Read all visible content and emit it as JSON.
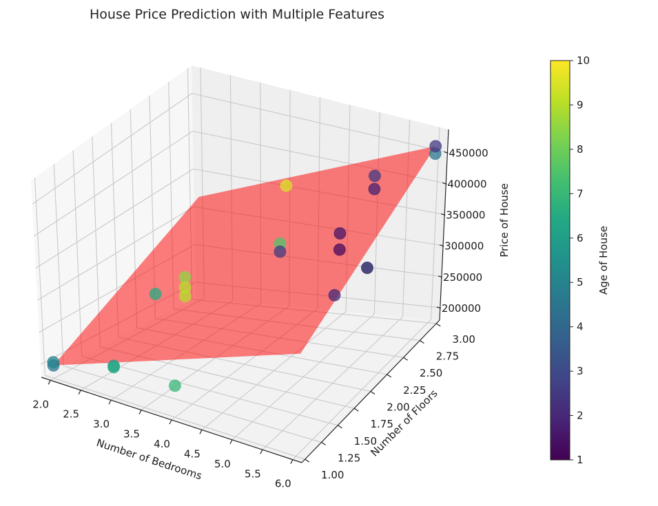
{
  "figure": {
    "title": "House Price Prediction with Multiple Features"
  },
  "chart_data": {
    "type": "scatter3d",
    "title": "House Price Prediction with Multiple Features",
    "xlabel": "Number of Bedrooms",
    "ylabel": "Number of Floors",
    "zlabel": "Price of House",
    "colorbar_label": "Age of House",
    "colormap": "viridis",
    "xlim": [
      1.85,
      6.15
    ],
    "ylim": [
      0.95,
      3.05
    ],
    "zlim": [
      180000,
      487000
    ],
    "clim": [
      1,
      10
    ],
    "x_ticks": [
      "2.0",
      "2.5",
      "3.0",
      "3.5",
      "4.0",
      "4.5",
      "5.0",
      "5.5",
      "6.0"
    ],
    "y_ticks": [
      "1.00",
      "1.25",
      "1.50",
      "1.75",
      "2.00",
      "2.25",
      "2.50",
      "2.75",
      "3.00"
    ],
    "z_ticks": [
      "200000",
      "250000",
      "300000",
      "350000",
      "400000",
      "450000"
    ],
    "colorbar_ticks": [
      "1",
      "2",
      "3",
      "4",
      "5",
      "6",
      "7",
      "8",
      "9",
      "10"
    ],
    "grid": true,
    "points": [
      {
        "bedrooms": 2,
        "floors": 1,
        "price": 200000,
        "age": 4.5
      },
      {
        "bedrooms": 2,
        "floors": 1,
        "price": 205000,
        "age": 5
      },
      {
        "bedrooms": 3,
        "floors": 1,
        "price": 230000,
        "age": 5.5
      },
      {
        "bedrooms": 3,
        "floors": 1,
        "price": 228000,
        "age": 6.5
      },
      {
        "bedrooms": 4,
        "floors": 1,
        "price": 230000,
        "age": 7
      },
      {
        "bedrooms": 2.5,
        "floors": 2,
        "price": 255000,
        "age": 6.5
      },
      {
        "bedrooms": 3,
        "floors": 2,
        "price": 290000,
        "age": 8.5
      },
      {
        "bedrooms": 3,
        "floors": 2,
        "price": 275000,
        "age": 9
      },
      {
        "bedrooms": 3,
        "floors": 2,
        "price": 262000,
        "age": 9
      },
      {
        "bedrooms": 4,
        "floors": 2.5,
        "price": 320000,
        "age": 7.5
      },
      {
        "bedrooms": 4,
        "floors": 2.5,
        "price": 308000,
        "age": 2.5
      },
      {
        "bedrooms": 3.5,
        "floors": 3,
        "price": 355000,
        "age": 9.5
      },
      {
        "bedrooms": 5,
        "floors": 2.5,
        "price": 355000,
        "age": 1.5
      },
      {
        "bedrooms": 5,
        "floors": 2.5,
        "price": 330000,
        "age": 1.2
      },
      {
        "bedrooms": 5,
        "floors": 3,
        "price": 395000,
        "age": 2.5
      },
      {
        "bedrooms": 5,
        "floors": 3,
        "price": 375000,
        "age": 1.8
      },
      {
        "bedrooms": 6,
        "floors": 2,
        "price": 375000,
        "age": 6.5
      },
      {
        "bedrooms": 6,
        "floors": 2,
        "price": 375000,
        "age": 1.8
      },
      {
        "bedrooms": 6,
        "floors": 3,
        "price": 450000,
        "age": 4.5
      },
      {
        "bedrooms": 6,
        "floors": 3,
        "price": 462000,
        "age": 2.5
      },
      {
        "bedrooms": 6,
        "floors": 1.5,
        "price": 385000,
        "age": 2
      }
    ],
    "plane": {
      "color": "#ff0000",
      "alpha": 0.5,
      "corners": [
        {
          "bedrooms": 2,
          "floors": 1,
          "price": 200000
        },
        {
          "bedrooms": 6,
          "floors": 1,
          "price": 345000
        },
        {
          "bedrooms": 6,
          "floors": 3,
          "price": 462000
        },
        {
          "bedrooms": 2,
          "floors": 3,
          "price": 318000
        }
      ]
    }
  }
}
